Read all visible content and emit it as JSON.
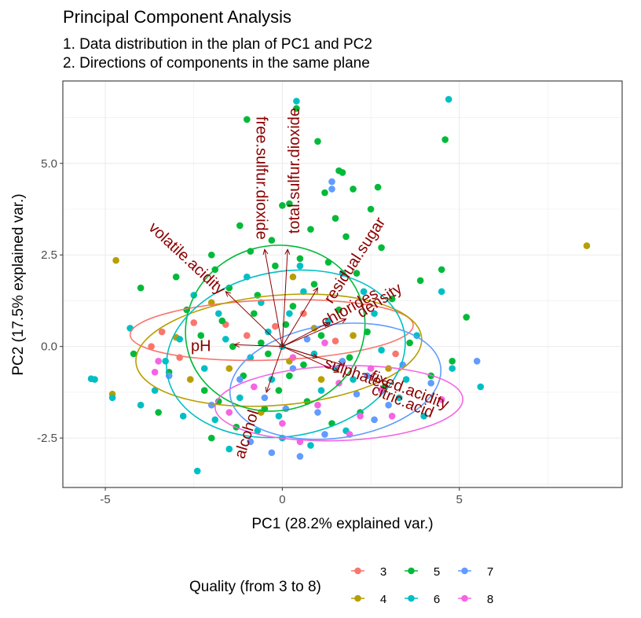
{
  "chart_data": {
    "type": "scatter",
    "title": "Principal Component Analysis",
    "subtitle_lines": [
      "1. Data distribution in the plan of PC1 and PC2",
      "2. Directions of components in the same plane"
    ],
    "xlabel": "PC1 (28.2% explained var.)",
    "ylabel": "PC2 (17.5% explained var.)",
    "xlim": [
      -6.2,
      9.6
    ],
    "ylim": [
      -3.85,
      7.25
    ],
    "xticks": [
      -5,
      0,
      5
    ],
    "xtick_labels": [
      "-5",
      "0",
      "5"
    ],
    "yticks": [
      -2.5,
      0,
      2.5,
      5
    ],
    "ytick_labels": [
      "-2.5",
      "0.0",
      "2.5",
      "5.0"
    ],
    "grid": true,
    "legend": {
      "title": "Quality (from 3 to 8)",
      "position": "bottom",
      "entries": [
        {
          "label": "3",
          "color": "#F8766D"
        },
        {
          "label": "4",
          "color": "#B79F00"
        },
        {
          "label": "5",
          "color": "#00BA38"
        },
        {
          "label": "6",
          "color": "#00BFC4"
        },
        {
          "label": "7",
          "color": "#619CFF"
        },
        {
          "label": "8",
          "color": "#F564E3"
        }
      ]
    },
    "ellipses": [
      {
        "group": "3",
        "cx": -0.3,
        "cy": 0.45,
        "rx": 4.0,
        "ry": 0.82,
        "angle_deg": 2
      },
      {
        "group": "4",
        "cx": -0.1,
        "cy": -0.1,
        "rx": 4.05,
        "ry": 1.5,
        "angle_deg": 5
      },
      {
        "group": "5",
        "cx": -0.2,
        "cy": 0.5,
        "rx": 2.55,
        "ry": 2.25,
        "angle_deg": 15
      },
      {
        "group": "6",
        "cx": 0.1,
        "cy": -0.2,
        "rx": 3.4,
        "ry": 2.25,
        "angle_deg": 10
      },
      {
        "group": "7",
        "cx": 1.5,
        "cy": -0.95,
        "rx": 3.0,
        "ry": 1.55,
        "angle_deg": 8
      },
      {
        "group": "8",
        "cx": 1.6,
        "cy": -1.55,
        "rx": 3.5,
        "ry": 1.02,
        "angle_deg": 2
      }
    ],
    "arrows": [
      {
        "label": "free.sulfur.dioxide",
        "x": -0.5,
        "y": 2.65,
        "label_x": -0.6,
        "label_y": 4.6,
        "angle_deg": 90
      },
      {
        "label": "total.sulfur.dioxide",
        "x": 0.15,
        "y": 2.65,
        "label_x": 0.35,
        "label_y": 4.8,
        "angle_deg": -90
      },
      {
        "label": "volatile.acidity",
        "x": -1.6,
        "y": 1.5,
        "label_x": -2.7,
        "label_y": 2.4,
        "angle_deg": 43
      },
      {
        "label": "residual.sugar",
        "x": 1.0,
        "y": 1.6,
        "label_x": 2.05,
        "label_y": 2.35,
        "angle_deg": -57
      },
      {
        "label": "chlorides",
        "x": 1.3,
        "y": 0.65,
        "label_x": 1.9,
        "label_y": 1.05,
        "angle_deg": -30
      },
      {
        "label": "density",
        "x": 1.8,
        "y": 0.75,
        "label_x": 2.75,
        "label_y": 1.25,
        "angle_deg": -33
      },
      {
        "label": "pH",
        "x": -1.35,
        "y": 0.05,
        "label_x": -2.3,
        "label_y": 0.0,
        "angle_deg": 0
      },
      {
        "label": "sulphates",
        "x": 1.0,
        "y": -0.3,
        "label_x": 2.1,
        "label_y": -0.75,
        "angle_deg": 20
      },
      {
        "label": "fixed.acidity",
        "x": 1.7,
        "y": -0.5,
        "label_x": 3.6,
        "label_y": -1.2,
        "angle_deg": 21
      },
      {
        "label": "citric.acid",
        "x": 1.6,
        "y": -0.7,
        "label_x": 3.4,
        "label_y": -1.5,
        "angle_deg": 22
      },
      {
        "label": "alcohol",
        "x": -0.45,
        "y": -1.25,
        "label_x": -1.0,
        "label_y": -2.4,
        "angle_deg": -73
      }
    ],
    "points": [
      {
        "group": "3",
        "x": -3.4,
        "y": 0.4
      },
      {
        "group": "3",
        "x": -2.5,
        "y": 0.65
      },
      {
        "group": "3",
        "x": -1.6,
        "y": 0.6
      },
      {
        "group": "3",
        "x": -0.2,
        "y": 0.55
      },
      {
        "group": "3",
        "x": 1.5,
        "y": 0.15
      },
      {
        "group": "3",
        "x": -2.9,
        "y": -0.3
      },
      {
        "group": "3",
        "x": 0.6,
        "y": 0.9
      },
      {
        "group": "3",
        "x": -3.7,
        "y": 0.0
      },
      {
        "group": "3",
        "x": 3.2,
        "y": -0.2
      },
      {
        "group": "3",
        "x": -1.0,
        "y": 0.3
      },
      {
        "group": "4",
        "x": -4.7,
        "y": 2.35
      },
      {
        "group": "4",
        "x": 8.6,
        "y": 2.75
      },
      {
        "group": "4",
        "x": -4.8,
        "y": -1.3
      },
      {
        "group": "4",
        "x": -2.0,
        "y": 1.2
      },
      {
        "group": "4",
        "x": 0.3,
        "y": 1.9
      },
      {
        "group": "4",
        "x": 2.0,
        "y": 0.3
      },
      {
        "group": "4",
        "x": -1.5,
        "y": -0.6
      },
      {
        "group": "4",
        "x": 1.1,
        "y": -0.9
      },
      {
        "group": "4",
        "x": -3.0,
        "y": 0.25
      },
      {
        "group": "4",
        "x": 3.0,
        "y": -0.6
      },
      {
        "group": "4",
        "x": -0.6,
        "y": -1.8
      },
      {
        "group": "4",
        "x": 0.9,
        "y": 0.5
      },
      {
        "group": "4",
        "x": -2.6,
        "y": -0.9
      },
      {
        "group": "4",
        "x": 0.2,
        "y": -0.4
      },
      {
        "group": "5",
        "x": -1.0,
        "y": 6.2
      },
      {
        "group": "5",
        "x": 1.0,
        "y": 5.6
      },
      {
        "group": "5",
        "x": 4.6,
        "y": 5.65
      },
      {
        "group": "5",
        "x": 0.4,
        "y": 6.5
      },
      {
        "group": "5",
        "x": 1.6,
        "y": 4.8
      },
      {
        "group": "5",
        "x": 1.7,
        "y": 4.75
      },
      {
        "group": "5",
        "x": 0.2,
        "y": 3.9
      },
      {
        "group": "5",
        "x": 0.0,
        "y": 3.85
      },
      {
        "group": "5",
        "x": 2.7,
        "y": 4.35
      },
      {
        "group": "5",
        "x": 2.0,
        "y": 4.3
      },
      {
        "group": "5",
        "x": 1.2,
        "y": 4.2
      },
      {
        "group": "5",
        "x": 1.5,
        "y": 3.5
      },
      {
        "group": "5",
        "x": 2.5,
        "y": 3.75
      },
      {
        "group": "5",
        "x": -1.2,
        "y": 3.3
      },
      {
        "group": "5",
        "x": 0.8,
        "y": 3.2
      },
      {
        "group": "5",
        "x": 1.8,
        "y": 3.0
      },
      {
        "group": "5",
        "x": -0.3,
        "y": 2.9
      },
      {
        "group": "5",
        "x": -2.0,
        "y": 2.5
      },
      {
        "group": "5",
        "x": 2.8,
        "y": 2.7
      },
      {
        "group": "5",
        "x": -4.0,
        "y": 1.6
      },
      {
        "group": "5",
        "x": 3.9,
        "y": 1.8
      },
      {
        "group": "5",
        "x": 4.5,
        "y": 2.1
      },
      {
        "group": "5",
        "x": 5.2,
        "y": 0.8
      },
      {
        "group": "5",
        "x": -3.2,
        "y": -0.7
      },
      {
        "group": "5",
        "x": -1.8,
        "y": -1.5
      },
      {
        "group": "5",
        "x": -0.5,
        "y": -1.7
      },
      {
        "group": "5",
        "x": 2.2,
        "y": -1.8
      },
      {
        "group": "5",
        "x": -2.0,
        "y": -2.5
      },
      {
        "group": "5",
        "x": -0.4,
        "y": -0.2
      },
      {
        "group": "5",
        "x": -0.8,
        "y": 0.9
      },
      {
        "group": "5",
        "x": 0.3,
        "y": 1.1
      },
      {
        "group": "5",
        "x": -1.5,
        "y": 1.6
      },
      {
        "group": "5",
        "x": 0.9,
        "y": 1.7
      },
      {
        "group": "5",
        "x": -0.2,
        "y": 2.2
      },
      {
        "group": "5",
        "x": 1.3,
        "y": 2.3
      },
      {
        "group": "5",
        "x": -2.3,
        "y": 0.3
      },
      {
        "group": "5",
        "x": 2.4,
        "y": 0.4
      },
      {
        "group": "5",
        "x": -1.1,
        "y": -0.8
      },
      {
        "group": "5",
        "x": 0.6,
        "y": -0.5
      },
      {
        "group": "5",
        "x": 1.9,
        "y": -0.3
      },
      {
        "group": "5",
        "x": -2.7,
        "y": 1.0
      },
      {
        "group": "5",
        "x": 3.1,
        "y": 1.3
      },
      {
        "group": "5",
        "x": -3.5,
        "y": -1.8
      },
      {
        "group": "5",
        "x": 4.2,
        "y": -0.8
      },
      {
        "group": "5",
        "x": -0.6,
        "y": 0.1
      },
      {
        "group": "5",
        "x": 0.1,
        "y": 0.6
      },
      {
        "group": "5",
        "x": -1.7,
        "y": 0.7
      },
      {
        "group": "5",
        "x": 1.1,
        "y": 0.3
      },
      {
        "group": "5",
        "x": -0.9,
        "y": 2.6
      },
      {
        "group": "5",
        "x": 0.5,
        "y": 2.4
      },
      {
        "group": "5",
        "x": -1.3,
        "y": -2.2
      },
      {
        "group": "5",
        "x": 1.4,
        "y": -2.1
      },
      {
        "group": "5",
        "x": 3.6,
        "y": 0.1
      },
      {
        "group": "5",
        "x": -3.0,
        "y": 1.9
      },
      {
        "group": "5",
        "x": 2.9,
        "y": -1.1
      },
      {
        "group": "5",
        "x": -0.1,
        "y": -1.2
      },
      {
        "group": "5",
        "x": 0.7,
        "y": -1.5
      },
      {
        "group": "5",
        "x": -2.2,
        "y": -1.2
      },
      {
        "group": "5",
        "x": -1.9,
        "y": 2.1
      },
      {
        "group": "5",
        "x": 2.1,
        "y": 2.0
      },
      {
        "group": "5",
        "x": 4.8,
        "y": -0.4
      },
      {
        "group": "5",
        "x": -4.2,
        "y": -0.2
      },
      {
        "group": "5",
        "x": -0.7,
        "y": 1.4
      },
      {
        "group": "5",
        "x": 0.2,
        "y": -0.8
      },
      {
        "group": "5",
        "x": 1.6,
        "y": 1.0
      },
      {
        "group": "5",
        "x": -1.4,
        "y": 0.0
      },
      {
        "group": "6",
        "x": 4.7,
        "y": 6.75
      },
      {
        "group": "6",
        "x": 0.4,
        "y": 6.7
      },
      {
        "group": "6",
        "x": -5.3,
        "y": -0.9
      },
      {
        "group": "6",
        "x": -5.4,
        "y": -0.88
      },
      {
        "group": "6",
        "x": -4.8,
        "y": -1.4
      },
      {
        "group": "6",
        "x": -2.4,
        "y": -3.4
      },
      {
        "group": "6",
        "x": 5.6,
        "y": -1.1
      },
      {
        "group": "6",
        "x": 4.0,
        "y": -1.9
      },
      {
        "group": "6",
        "x": 4.8,
        "y": -0.6
      },
      {
        "group": "6",
        "x": -3.6,
        "y": -1.2
      },
      {
        "group": "6",
        "x": -4.0,
        "y": -1.6
      },
      {
        "group": "6",
        "x": -2.8,
        "y": -1.9
      },
      {
        "group": "6",
        "x": -1.5,
        "y": -2.8
      },
      {
        "group": "6",
        "x": 0.0,
        "y": -2.5
      },
      {
        "group": "6",
        "x": 1.8,
        "y": -2.3
      },
      {
        "group": "6",
        "x": 3.3,
        "y": -1.4
      },
      {
        "group": "6",
        "x": 2.6,
        "y": 0.9
      },
      {
        "group": "6",
        "x": 1.7,
        "y": 2.0
      },
      {
        "group": "6",
        "x": 0.5,
        "y": 2.2
      },
      {
        "group": "6",
        "x": -0.6,
        "y": 1.2
      },
      {
        "group": "6",
        "x": -1.8,
        "y": 0.9
      },
      {
        "group": "6",
        "x": -2.9,
        "y": 0.2
      },
      {
        "group": "6",
        "x": -0.3,
        "y": -0.9
      },
      {
        "group": "6",
        "x": 0.9,
        "y": -0.2
      },
      {
        "group": "6",
        "x": 2.0,
        "y": -0.9
      },
      {
        "group": "6",
        "x": -1.2,
        "y": -1.4
      },
      {
        "group": "6",
        "x": -0.9,
        "y": -0.3
      },
      {
        "group": "6",
        "x": 1.3,
        "y": 0.7
      },
      {
        "group": "6",
        "x": -2.2,
        "y": -0.6
      },
      {
        "group": "6",
        "x": 3.8,
        "y": 0.3
      },
      {
        "group": "6",
        "x": -3.3,
        "y": -0.4
      },
      {
        "group": "6",
        "x": 0.2,
        "y": 0.9
      },
      {
        "group": "6",
        "x": -0.1,
        "y": -1.9
      },
      {
        "group": "6",
        "x": 2.8,
        "y": -0.1
      },
      {
        "group": "6",
        "x": -1.6,
        "y": 0.2
      },
      {
        "group": "6",
        "x": 1.1,
        "y": -1.2
      },
      {
        "group": "6",
        "x": -0.4,
        "y": 0.4
      },
      {
        "group": "6",
        "x": 0.6,
        "y": 1.5
      },
      {
        "group": "6",
        "x": -2.5,
        "y": 1.4
      },
      {
        "group": "6",
        "x": 3.5,
        "y": -0.9
      },
      {
        "group": "6",
        "x": -1.0,
        "y": 1.9
      },
      {
        "group": "6",
        "x": 1.5,
        "y": -0.6
      },
      {
        "group": "6",
        "x": -0.7,
        "y": -2.3
      },
      {
        "group": "6",
        "x": 0.8,
        "y": -2.7
      },
      {
        "group": "6",
        "x": 4.5,
        "y": 1.5
      },
      {
        "group": "6",
        "x": -4.3,
        "y": 0.5
      },
      {
        "group": "6",
        "x": 2.3,
        "y": 1.5
      },
      {
        "group": "6",
        "x": -1.9,
        "y": -2.0
      },
      {
        "group": "6",
        "x": 0.0,
        "y": 0.0
      },
      {
        "group": "7",
        "x": 1.4,
        "y": 4.5
      },
      {
        "group": "7",
        "x": 1.4,
        "y": 4.3
      },
      {
        "group": "7",
        "x": 5.5,
        "y": -0.4
      },
      {
        "group": "7",
        "x": 0.5,
        "y": -3.0
      },
      {
        "group": "7",
        "x": -0.3,
        "y": -2.9
      },
      {
        "group": "7",
        "x": 3.0,
        "y": -1.6
      },
      {
        "group": "7",
        "x": 4.2,
        "y": -1.0
      },
      {
        "group": "7",
        "x": 2.1,
        "y": -1.3
      },
      {
        "group": "7",
        "x": 1.0,
        "y": -1.8
      },
      {
        "group": "7",
        "x": -0.5,
        "y": -1.4
      },
      {
        "group": "7",
        "x": 0.3,
        "y": -0.6
      },
      {
        "group": "7",
        "x": 1.7,
        "y": -0.4
      },
      {
        "group": "7",
        "x": 2.6,
        "y": -2.0
      },
      {
        "group": "7",
        "x": -1.2,
        "y": -0.9
      },
      {
        "group": "7",
        "x": 0.7,
        "y": 0.2
      },
      {
        "group": "7",
        "x": 3.4,
        "y": -0.5
      },
      {
        "group": "7",
        "x": -2.0,
        "y": -1.6
      },
      {
        "group": "7",
        "x": 1.2,
        "y": -2.4
      },
      {
        "group": "7",
        "x": -0.9,
        "y": -2.6
      },
      {
        "group": "7",
        "x": 2.4,
        "y": -0.8
      },
      {
        "group": "7",
        "x": -3.2,
        "y": -0.8
      },
      {
        "group": "7",
        "x": 0.1,
        "y": -1.7
      },
      {
        "group": "8",
        "x": -3.5,
        "y": -0.4
      },
      {
        "group": "8",
        "x": -3.6,
        "y": -0.7
      },
      {
        "group": "8",
        "x": 4.5,
        "y": -1.45
      },
      {
        "group": "8",
        "x": 0.5,
        "y": -2.6
      },
      {
        "group": "8",
        "x": 2.2,
        "y": -1.9
      },
      {
        "group": "8",
        "x": 1.0,
        "y": -1.6
      },
      {
        "group": "8",
        "x": 2.8,
        "y": -1.2
      },
      {
        "group": "8",
        "x": -0.8,
        "y": -1.1
      },
      {
        "group": "8",
        "x": 1.6,
        "y": -1.0
      },
      {
        "group": "8",
        "x": 3.1,
        "y": -1.9
      },
      {
        "group": "8",
        "x": 0.0,
        "y": -2.1
      },
      {
        "group": "8",
        "x": 1.9,
        "y": -2.4
      },
      {
        "group": "8",
        "x": -1.5,
        "y": -1.8
      },
      {
        "group": "8",
        "x": 0.3,
        "y": -0.3
      },
      {
        "group": "8",
        "x": 2.5,
        "y": -0.6
      },
      {
        "group": "8",
        "x": 1.2,
        "y": 0.1
      }
    ]
  }
}
